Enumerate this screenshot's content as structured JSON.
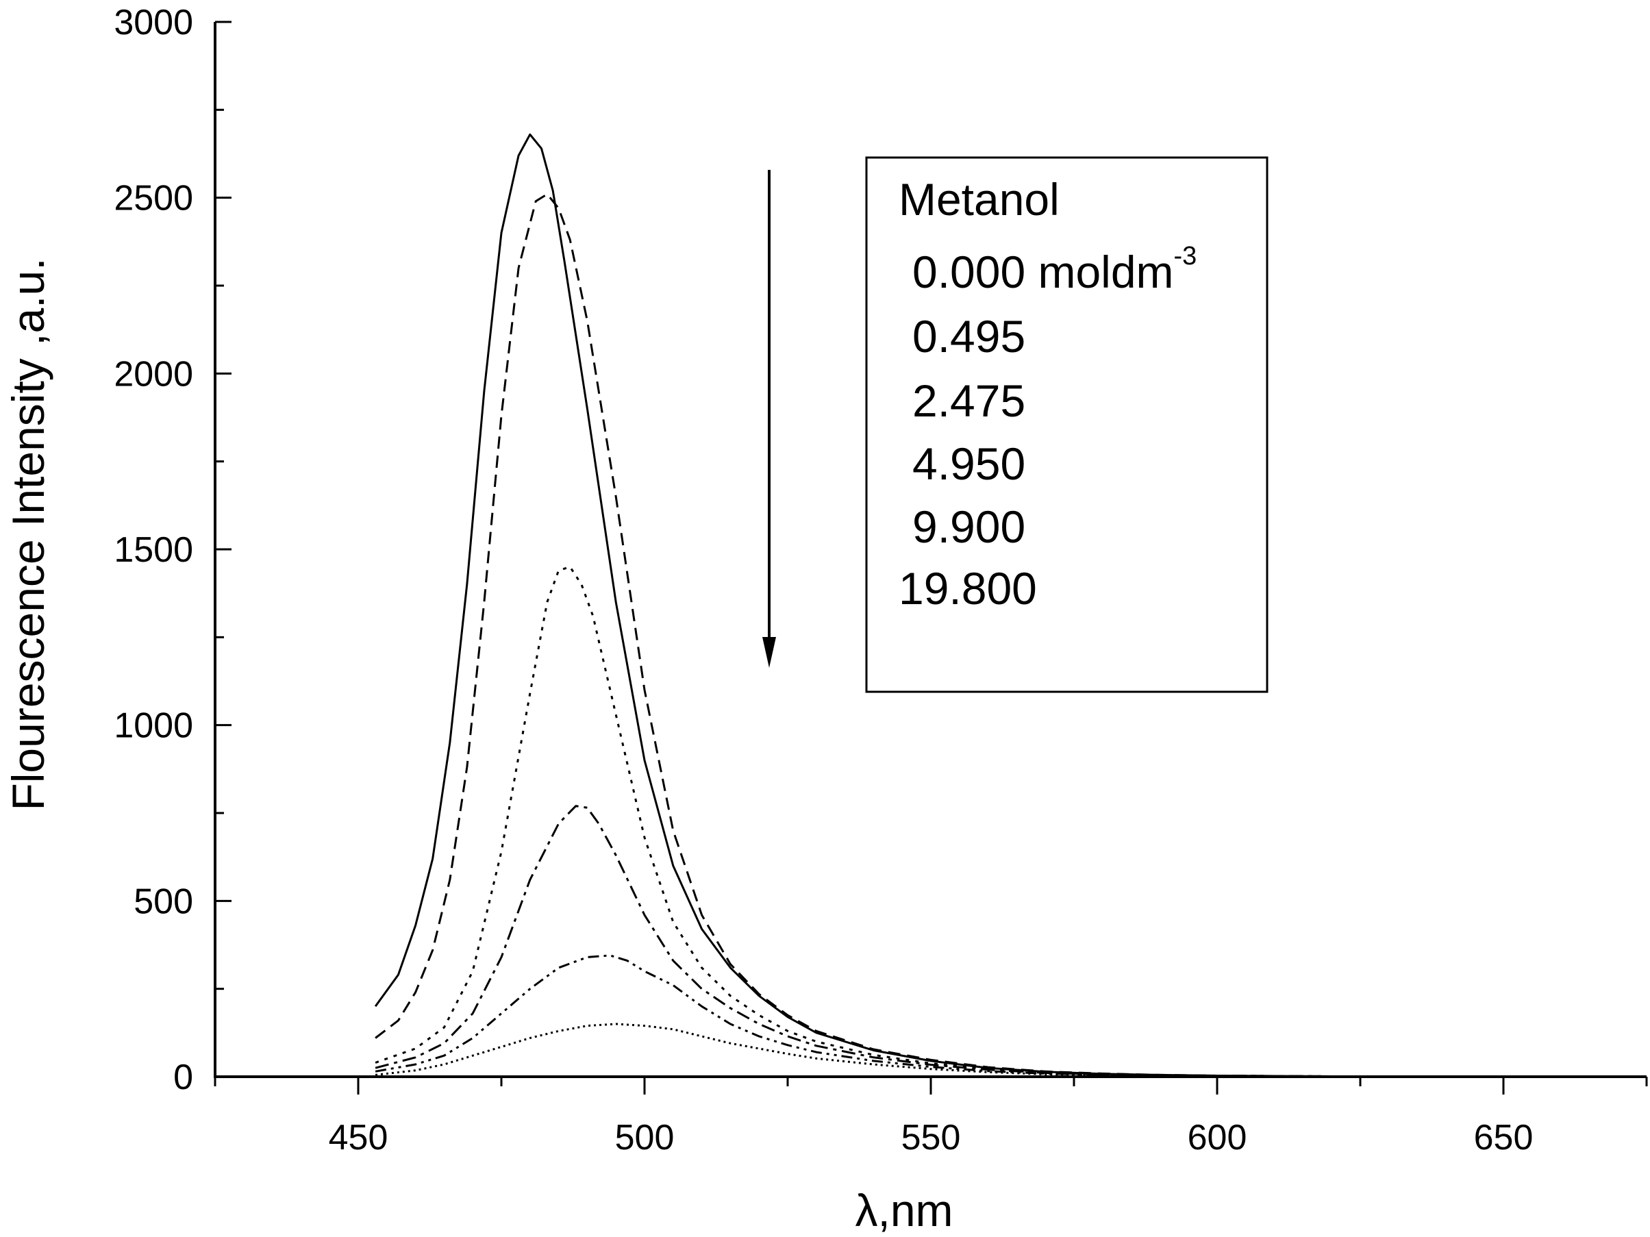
{
  "chart_data": {
    "type": "line",
    "title": "",
    "xlabel": "λ,nm",
    "ylabel": "Flourescence Intensity ,a.u.",
    "xlim": [
      425,
      675
    ],
    "ylim": [
      0,
      3000
    ],
    "x_ticks": [
      "450",
      "500",
      "550",
      "600",
      "650"
    ],
    "x_tick_values": [
      450,
      500,
      550,
      600,
      650
    ],
    "y_ticks": [
      "0",
      "500",
      "1000",
      "1500",
      "2000",
      "2500",
      "3000"
    ],
    "y_tick_values": [
      0,
      500,
      1000,
      1500,
      2000,
      2500,
      3000
    ],
    "grid": false,
    "legend": {
      "position": "top-right",
      "title": "Metanol",
      "first_label": "0.000 moldm",
      "first_label_sup": "-3",
      "labels": [
        "0.495",
        "2.475",
        "4.950",
        "9.900",
        "19.800"
      ]
    },
    "annotation": "downward arrow indicating decreasing intensity with increasing methanol concentration",
    "series": [
      {
        "dash": "solid",
        "x": [
          453,
          457,
          460,
          463,
          466,
          469,
          472,
          475,
          478,
          480,
          482,
          484,
          486,
          490,
          495,
          500,
          505,
          510,
          515,
          520,
          525,
          530,
          540,
          550,
          560,
          570,
          580,
          590,
          600,
          610,
          620,
          630,
          640,
          652
        ],
        "y": [
          200,
          290,
          430,
          620,
          950,
          1400,
          1950,
          2400,
          2620,
          2680,
          2640,
          2520,
          2320,
          1900,
          1350,
          900,
          600,
          420,
          310,
          230,
          170,
          125,
          75,
          45,
          25,
          14,
          8,
          5,
          3,
          2,
          1,
          1,
          0,
          0
        ]
      },
      {
        "dash": "long-dash",
        "x": [
          453,
          457,
          460,
          463,
          466,
          469,
          472,
          475,
          478,
          481,
          483,
          485,
          487,
          490,
          495,
          500,
          505,
          510,
          515,
          520,
          525,
          530,
          540,
          550,
          560,
          570,
          580,
          590,
          600,
          610,
          620,
          630,
          640,
          652
        ],
        "y": [
          110,
          160,
          240,
          360,
          560,
          880,
          1350,
          1880,
          2300,
          2490,
          2510,
          2470,
          2380,
          2150,
          1650,
          1100,
          700,
          460,
          320,
          235,
          175,
          130,
          78,
          48,
          27,
          15,
          9,
          5,
          3,
          2,
          1,
          1,
          0,
          0
        ]
      },
      {
        "dash": "dot",
        "x": [
          453,
          460,
          465,
          470,
          475,
          480,
          483,
          485,
          487,
          489,
          491,
          495,
          500,
          505,
          510,
          515,
          520,
          525,
          530,
          540,
          550,
          560,
          570,
          580,
          590,
          600,
          610,
          620,
          630,
          640,
          652
        ],
        "y": [
          40,
          80,
          140,
          300,
          640,
          1090,
          1350,
          1440,
          1450,
          1400,
          1310,
          1030,
          680,
          440,
          310,
          230,
          175,
          130,
          100,
          62,
          38,
          22,
          12,
          7,
          4,
          3,
          2,
          1,
          1,
          0,
          0
        ]
      },
      {
        "dash": "dash-dot",
        "x": [
          453,
          460,
          465,
          470,
          475,
          480,
          485,
          488,
          490,
          492,
          495,
          500,
          505,
          510,
          515,
          520,
          525,
          530,
          540,
          550,
          560,
          570,
          580,
          590,
          600,
          610,
          620,
          630,
          640,
          652
        ],
        "y": [
          25,
          55,
          95,
          180,
          340,
          560,
          720,
          770,
          765,
          720,
          630,
          460,
          330,
          250,
          195,
          150,
          115,
          88,
          55,
          34,
          20,
          11,
          6,
          4,
          3,
          2,
          1,
          1,
          0,
          0
        ]
      },
      {
        "dash": "dash-dot-dot",
        "x": [
          453,
          460,
          465,
          470,
          475,
          480,
          485,
          490,
          494,
          497,
          500,
          505,
          510,
          515,
          520,
          525,
          530,
          540,
          550,
          560,
          570,
          580,
          590,
          600,
          610,
          620,
          630,
          640,
          652
        ],
        "y": [
          15,
          35,
          60,
          110,
          180,
          250,
          310,
          340,
          345,
          330,
          300,
          260,
          200,
          150,
          115,
          90,
          70,
          45,
          28,
          16,
          9,
          5,
          3,
          2,
          1,
          1,
          0,
          0,
          0
        ]
      },
      {
        "dash": "fine-dot",
        "x": [
          453,
          460,
          465,
          470,
          475,
          480,
          485,
          490,
          495,
          500,
          505,
          510,
          515,
          520,
          525,
          530,
          540,
          550,
          560,
          570,
          580,
          590,
          600,
          610,
          620,
          630,
          640,
          652
        ],
        "y": [
          5,
          18,
          35,
          60,
          85,
          110,
          130,
          145,
          150,
          145,
          135,
          115,
          95,
          80,
          65,
          52,
          35,
          22,
          13,
          7,
          4,
          3,
          2,
          1,
          1,
          0,
          0,
          0
        ]
      }
    ]
  }
}
